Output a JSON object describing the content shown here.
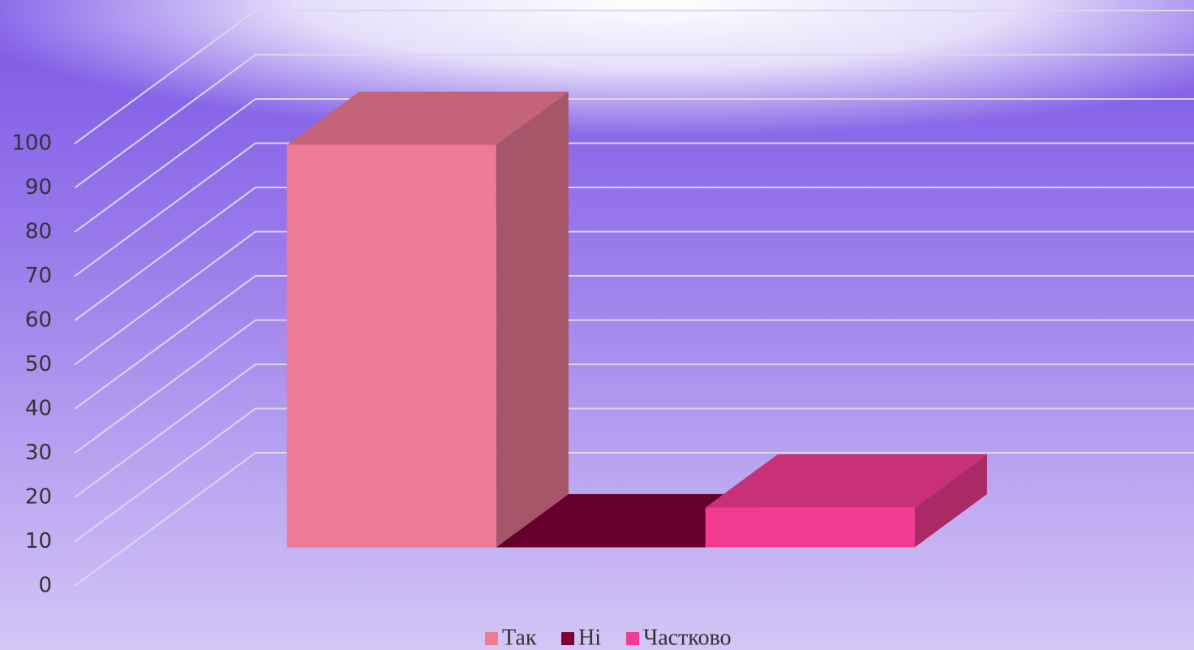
{
  "chart_data": {
    "type": "bar3d",
    "categories": [
      null
    ],
    "series": [
      {
        "name": "Так",
        "color": "#ef7a96",
        "values": [
          91
        ]
      },
      {
        "name": "Ні",
        "color": "#7a0035",
        "values": [
          0
        ]
      },
      {
        "name": "Частково",
        "color": "#f43b92",
        "values": [
          9
        ]
      }
    ],
    "ylim": [
      0,
      100
    ],
    "yticks": [
      0,
      10,
      20,
      30,
      40,
      50,
      60,
      70,
      80,
      90,
      100
    ],
    "grid": true,
    "legend": "bottom"
  }
}
